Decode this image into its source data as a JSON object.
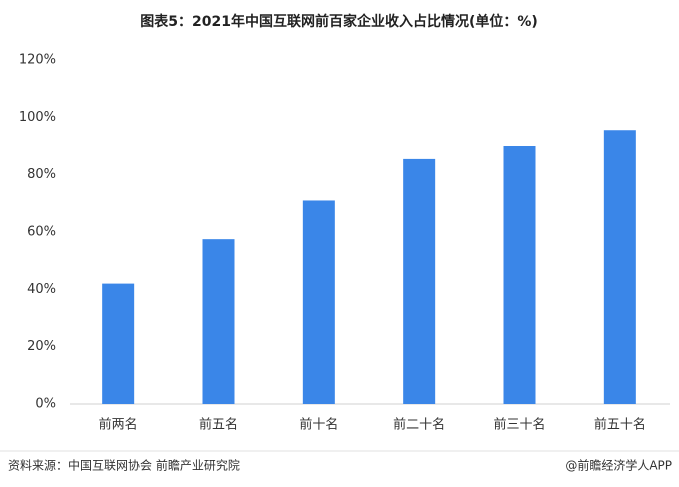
{
  "chart_data": {
    "type": "bar",
    "title": "图表5：2021年中国互联网前百家企业收入占比情况(单位：%)",
    "categories": [
      "前两名",
      "前五名",
      "前十名",
      "前二十名",
      "前三十名",
      "前五十名"
    ],
    "values": [
      42,
      57.5,
      71,
      85.5,
      90,
      95.5
    ],
    "color": "#3a86e8",
    "ylim": [
      0,
      120
    ],
    "yticks": [
      {
        "value": 0,
        "label": "0%"
      },
      {
        "value": 20,
        "label": "20%"
      },
      {
        "value": 40,
        "label": "40%"
      },
      {
        "value": 60,
        "label": "60%"
      },
      {
        "value": 80,
        "label": "80%"
      },
      {
        "value": 100,
        "label": "100%"
      },
      {
        "value": 120,
        "label": "120%"
      }
    ],
    "grid": false,
    "source": "资料来源：中国互联网协会 前瞻产业研究院",
    "credit": "@前瞻经济学人APP"
  }
}
